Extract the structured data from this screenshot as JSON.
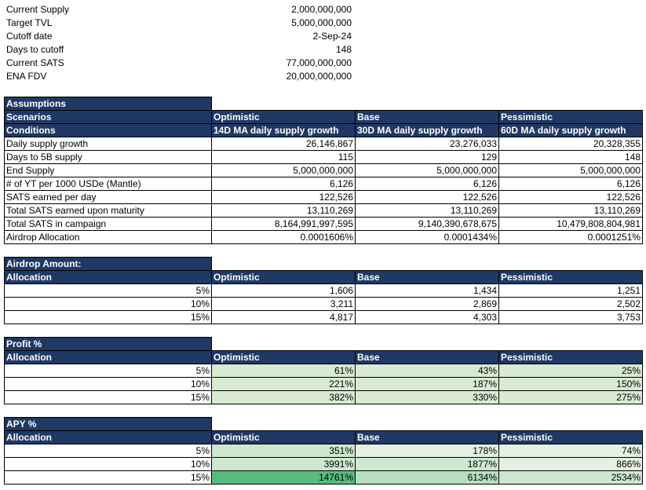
{
  "summary": [
    {
      "label": "Current Supply",
      "value": "2,000,000,000"
    },
    {
      "label": "Target TVL",
      "value": "5,000,000,000"
    },
    {
      "label": "Cutoff date",
      "value": "2-Sep-24"
    },
    {
      "label": "Days to cutoff",
      "value": "148"
    },
    {
      "label": "Current SATS",
      "value": "77,000,000,000"
    },
    {
      "label": "ENA FDV",
      "value": "20,000,000,000"
    }
  ],
  "assumptions": {
    "title": "Assumptions",
    "scenarios_label": "Scenarios",
    "conditions_label": "Conditions",
    "scenarios": [
      "Optimistic",
      "Base",
      "Pessimistic"
    ],
    "conditions": [
      "14D MA daily supply growth",
      "30D MA daily supply growth",
      "60D MA daily supply growth"
    ],
    "rows": [
      {
        "label": "Daily supply growth",
        "values": [
          "26,146,867",
          "23,276,033",
          "20,328,355"
        ]
      },
      {
        "label": "Days to 5B supply",
        "values": [
          "115",
          "129",
          "148"
        ]
      },
      {
        "label": "End Supply",
        "values": [
          "5,000,000,000",
          "5,000,000,000",
          "5,000,000,000"
        ]
      },
      {
        "label": "# of YT per 1000 USDe (Mantle)",
        "values": [
          "6,126",
          "6,126",
          "6,126"
        ]
      },
      {
        "label": "SATS earned per day",
        "values": [
          "122,526",
          "122,526",
          "122,526"
        ]
      },
      {
        "label": "Total SATS earned upon maturity",
        "values": [
          "13,110,269",
          "13,110,269",
          "13,110,269"
        ]
      },
      {
        "label": "Total SATS in campaign",
        "values": [
          "8,164,991,997,595",
          "9,140,390,678,675",
          "10,479,808,804,981"
        ]
      },
      {
        "label": "Airdrop Allocation",
        "values": [
          "0.0001606%",
          "0.0001434%",
          "0.0001251%"
        ]
      }
    ]
  },
  "airdrop": {
    "title": "Airdrop Amount:",
    "allocation_label": "Allocation",
    "scenarios": [
      "Optimistic",
      "Base",
      "Pessimistic"
    ],
    "rows": [
      {
        "alloc": "5%",
        "values": [
          "1,606",
          "1,434",
          "1,251"
        ]
      },
      {
        "alloc": "10%",
        "values": [
          "3,211",
          "2,869",
          "2,502"
        ]
      },
      {
        "alloc": "15%",
        "values": [
          "4,817",
          "4,303",
          "3,753"
        ]
      }
    ]
  },
  "profit": {
    "title": "Profit %",
    "allocation_label": "Allocation",
    "scenarios": [
      "Optimistic",
      "Base",
      "Pessimistic"
    ],
    "rows": [
      {
        "alloc": "5%",
        "values": [
          "61%",
          "43%",
          "25%"
        ]
      },
      {
        "alloc": "10%",
        "values": [
          "221%",
          "187%",
          "150%"
        ]
      },
      {
        "alloc": "15%",
        "values": [
          "382%",
          "330%",
          "275%"
        ]
      }
    ]
  },
  "apy": {
    "title": "APY %",
    "allocation_label": "Allocation",
    "scenarios": [
      "Optimistic",
      "Base",
      "Pessimistic"
    ],
    "rows": [
      {
        "alloc": "5%",
        "values": [
          "351%",
          "178%",
          "74%"
        ]
      },
      {
        "alloc": "10%",
        "values": [
          "3991%",
          "1877%",
          "866%"
        ]
      },
      {
        "alloc": "15%",
        "values": [
          "14761%",
          "6134%",
          "2534%"
        ]
      }
    ]
  },
  "colors": {
    "header_bg": "#1f3864",
    "green_light": "#d9ead3",
    "green_mid": "#b6dfc0",
    "green_strong": "#57bb7f"
  }
}
